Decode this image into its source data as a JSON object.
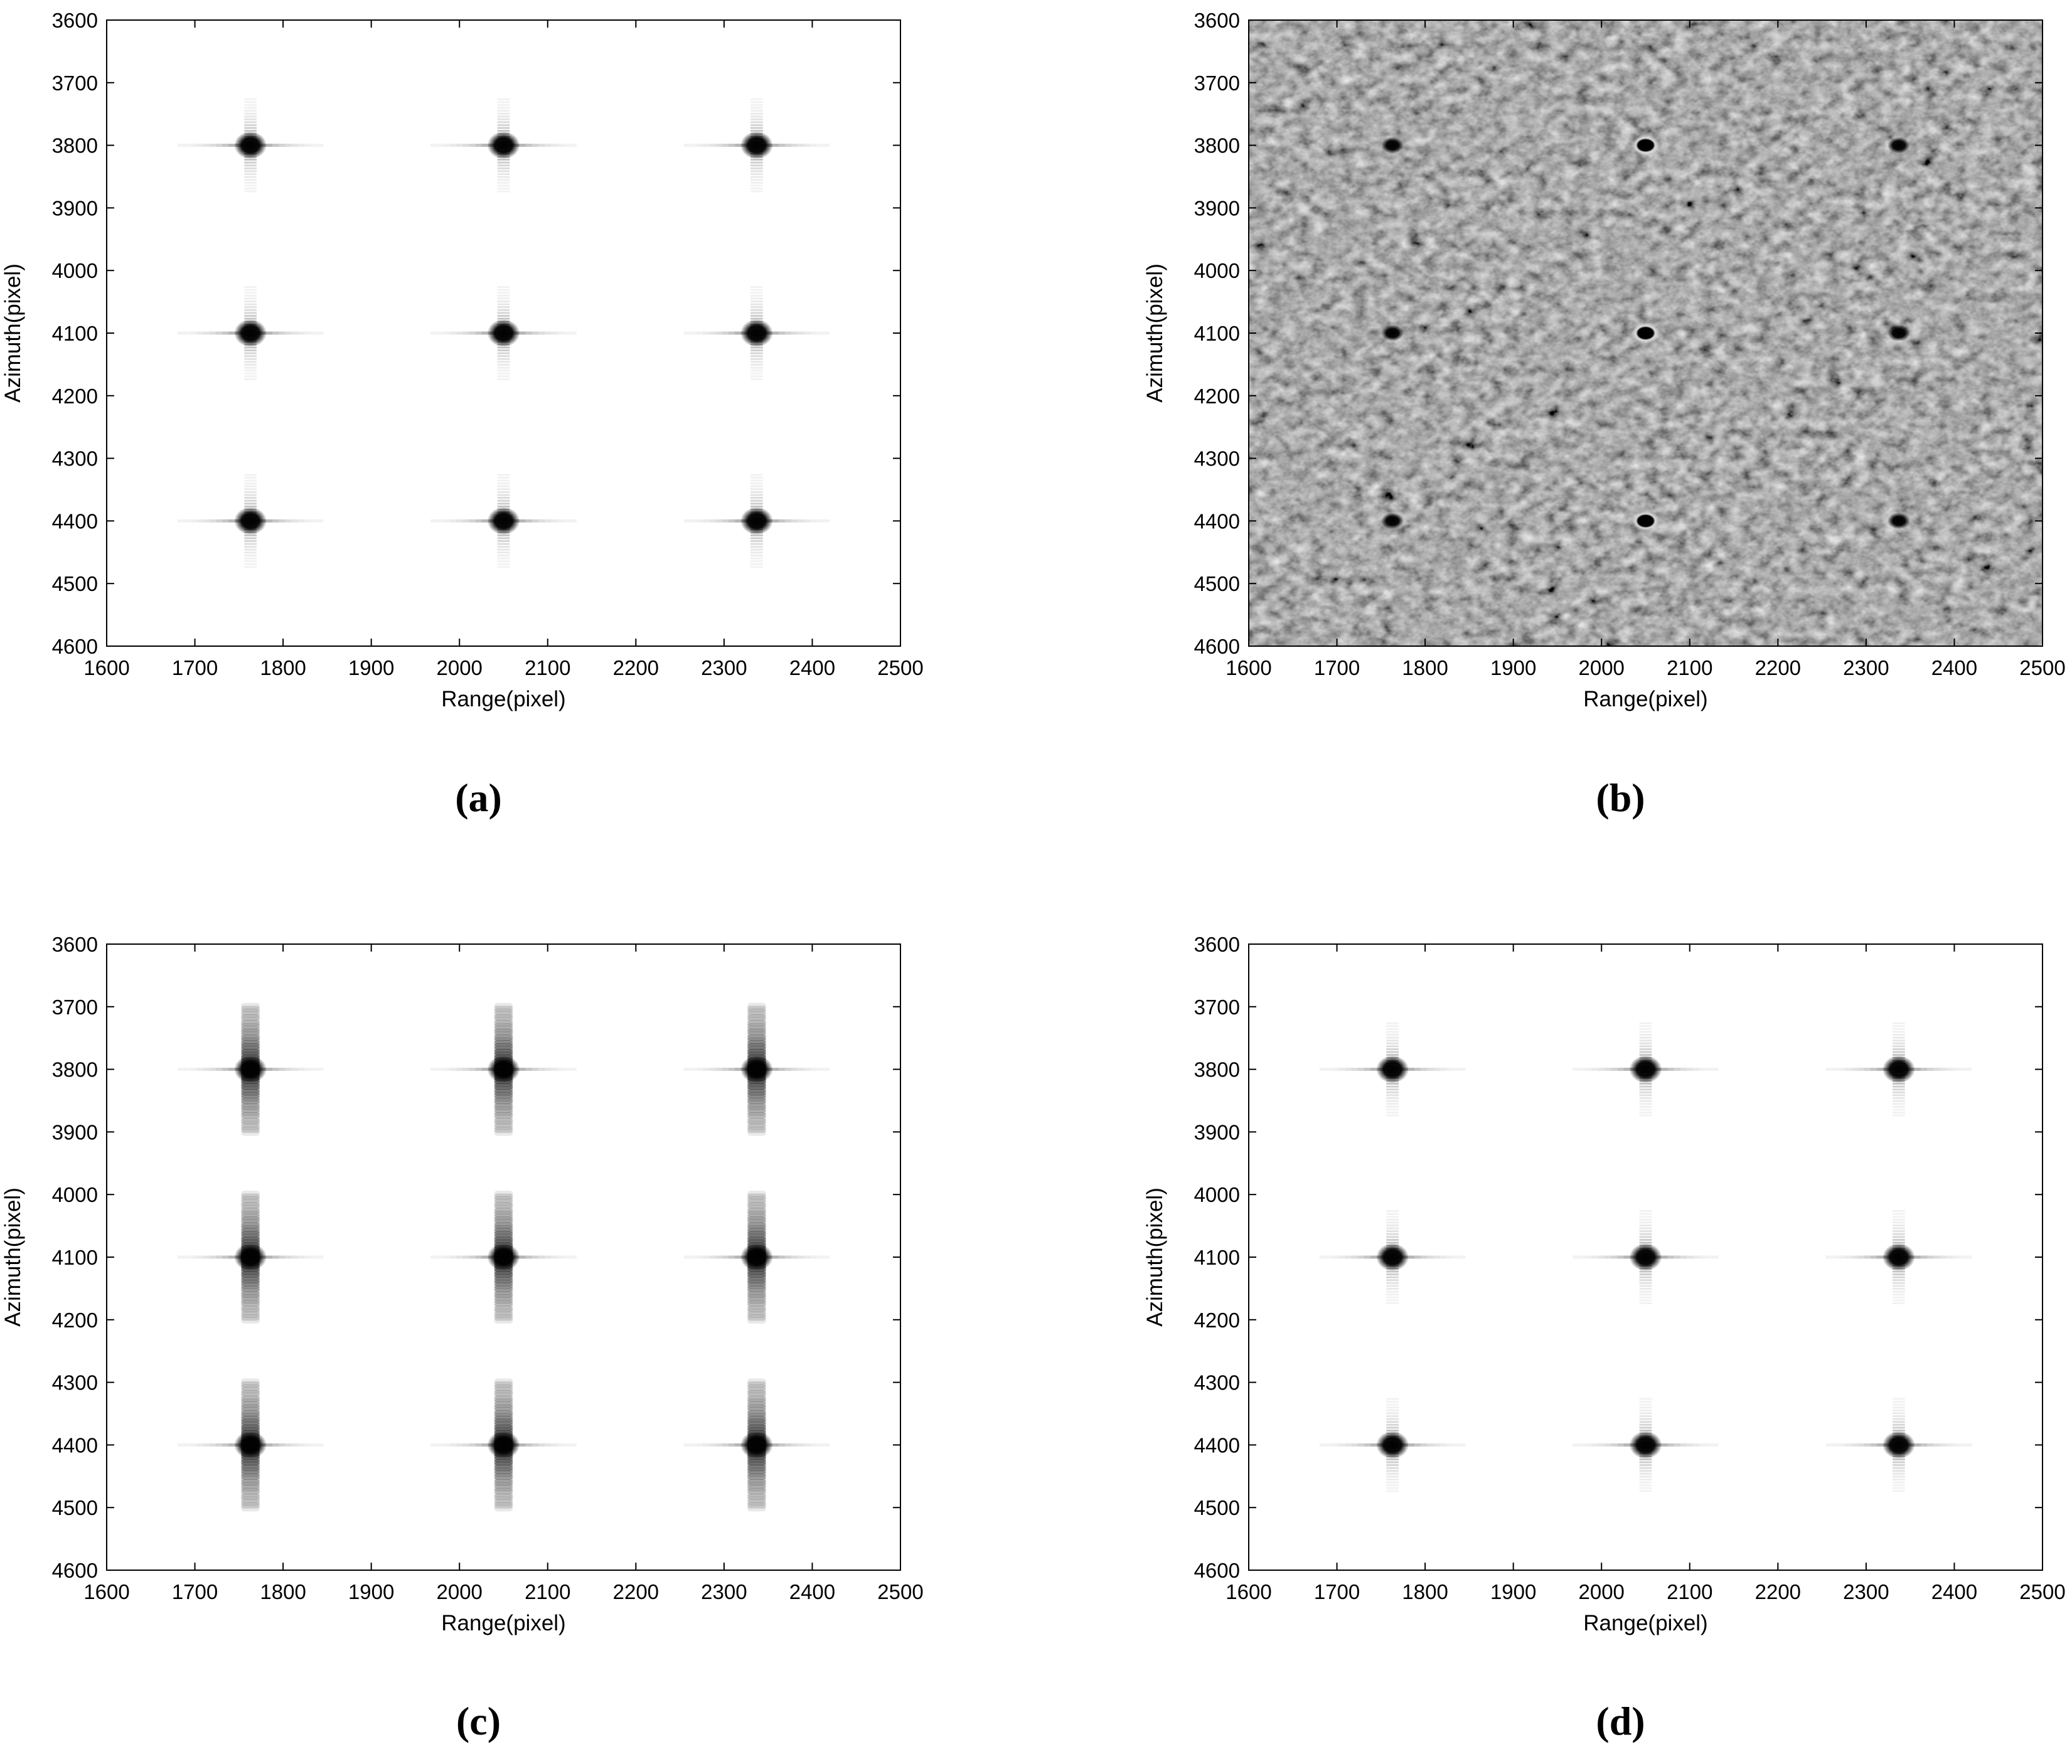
{
  "chart_data": [
    {
      "type": "heatmap",
      "panel_label": "(a)",
      "xlabel": "Range(pixel)",
      "ylabel": "Azimuth(pixel)",
      "xlim": [
        1600,
        2500
      ],
      "ylim": [
        3600,
        4600
      ],
      "y_axis_inverted": true,
      "xticks": [
        "1600",
        "1700",
        "1800",
        "1900",
        "2000",
        "2100",
        "2200",
        "2300",
        "2400",
        "2500"
      ],
      "yticks": [
        "3600",
        "3700",
        "3800",
        "3900",
        "4000",
        "4100",
        "4200",
        "4300",
        "4400",
        "4500",
        "4600"
      ],
      "colormap": "gray-inverted",
      "background": "white",
      "targets_range": [
        1763,
        2050,
        2337
      ],
      "targets_azimuth": [
        3800,
        4100,
        4400
      ],
      "response": "focused point targets with range and azimuth sidelobes"
    },
    {
      "type": "heatmap",
      "panel_label": "(b)",
      "xlabel": "Range(pixel)",
      "ylabel": "Azimuth(pixel)",
      "xlim": [
        1600,
        2500
      ],
      "ylim": [
        3600,
        4600
      ],
      "y_axis_inverted": true,
      "xticks": [
        "1600",
        "1700",
        "1800",
        "1900",
        "2000",
        "2100",
        "2200",
        "2300",
        "2400",
        "2500"
      ],
      "yticks": [
        "3600",
        "3700",
        "3800",
        "3900",
        "4000",
        "4100",
        "4200",
        "4300",
        "4400",
        "4500",
        "4600"
      ],
      "colormap": "gray",
      "background": "speckle clutter",
      "targets_range": [
        1763,
        2050,
        2337
      ],
      "targets_azimuth": [
        3800,
        4100,
        4400
      ],
      "response": "point targets embedded in clutter"
    },
    {
      "type": "heatmap",
      "panel_label": "(c)",
      "xlabel": "Range(pixel)",
      "ylabel": "Azimuth(pixel)",
      "xlim": [
        1600,
        2500
      ],
      "ylim": [
        3600,
        4600
      ],
      "y_axis_inverted": true,
      "xticks": [
        "1600",
        "1700",
        "1800",
        "1900",
        "2000",
        "2100",
        "2200",
        "2300",
        "2400",
        "2500"
      ],
      "yticks": [
        "3600",
        "3700",
        "3800",
        "3900",
        "4000",
        "4100",
        "4200",
        "4300",
        "4400",
        "4500",
        "4600"
      ],
      "colormap": "gray-inverted",
      "background": "white",
      "targets_range": [
        1763,
        2050,
        2337
      ],
      "targets_azimuth": [
        3800,
        4100,
        4400
      ],
      "response": "point targets with strong azimuth smearing"
    },
    {
      "type": "heatmap",
      "panel_label": "(d)",
      "xlabel": "Range(pixel)",
      "ylabel": "Azimuth(pixel)",
      "xlim": [
        1600,
        2500
      ],
      "ylim": [
        3600,
        4600
      ],
      "y_axis_inverted": true,
      "xticks": [
        "1600",
        "1700",
        "1800",
        "1900",
        "2000",
        "2100",
        "2200",
        "2300",
        "2400",
        "2500"
      ],
      "yticks": [
        "3600",
        "3700",
        "3800",
        "3900",
        "4000",
        "4100",
        "4200",
        "4300",
        "4400",
        "4500",
        "4600"
      ],
      "colormap": "gray-inverted",
      "background": "white",
      "targets_range": [
        1763,
        2050,
        2337
      ],
      "targets_azimuth": [
        3800,
        4100,
        4400
      ],
      "response": "focused point targets with range and azimuth sidelobes"
    }
  ]
}
